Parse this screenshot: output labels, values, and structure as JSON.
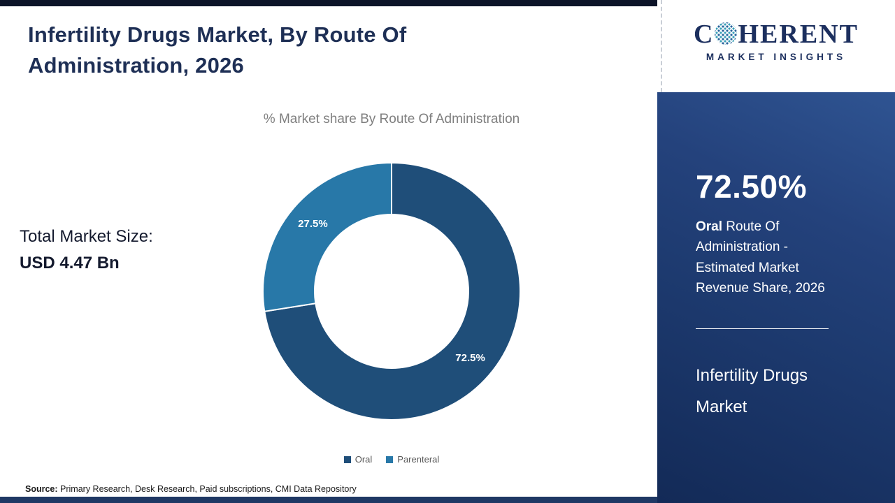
{
  "header": {
    "title": "Infertility Drugs Market, By Route Of Administration, 2026"
  },
  "chart": {
    "subtitle": "% Market share By Route Of Administration",
    "total_label": "Total Market Size:",
    "total_value": "USD 4.47 Bn",
    "legend": [
      {
        "label": "Oral",
        "color": "#1f4e79"
      },
      {
        "label": "Parenteral",
        "color": "#2878a8"
      }
    ]
  },
  "chart_data": {
    "type": "pie",
    "donut": true,
    "title": "% Market share By Route Of Administration",
    "labels": [
      "Oral",
      "Parenteral"
    ],
    "values": [
      72.5,
      27.5
    ],
    "data_labels": [
      "72.5%",
      "27.5%"
    ],
    "colors": [
      "#1f4e79",
      "#2878a8"
    ],
    "start_angle_deg": 0,
    "direction": "clockwise",
    "legend_position": "bottom"
  },
  "source": {
    "label": "Source:",
    "text": " Primary Research, Desk Research, Paid subscriptions, CMI Data Repository"
  },
  "sidebar": {
    "logo": {
      "prefix": "C",
      "suffix": "HERENT",
      "tagline": "MARKET INSIGHTS"
    },
    "stat_value": "72.50%",
    "stat_desc_bold": "Oral",
    "stat_desc_rest": " Route Of Administration - Estimated Market Revenue Share, 2026",
    "footer_lines": {
      "0": "Infertility Drugs",
      "1": "Market"
    }
  }
}
